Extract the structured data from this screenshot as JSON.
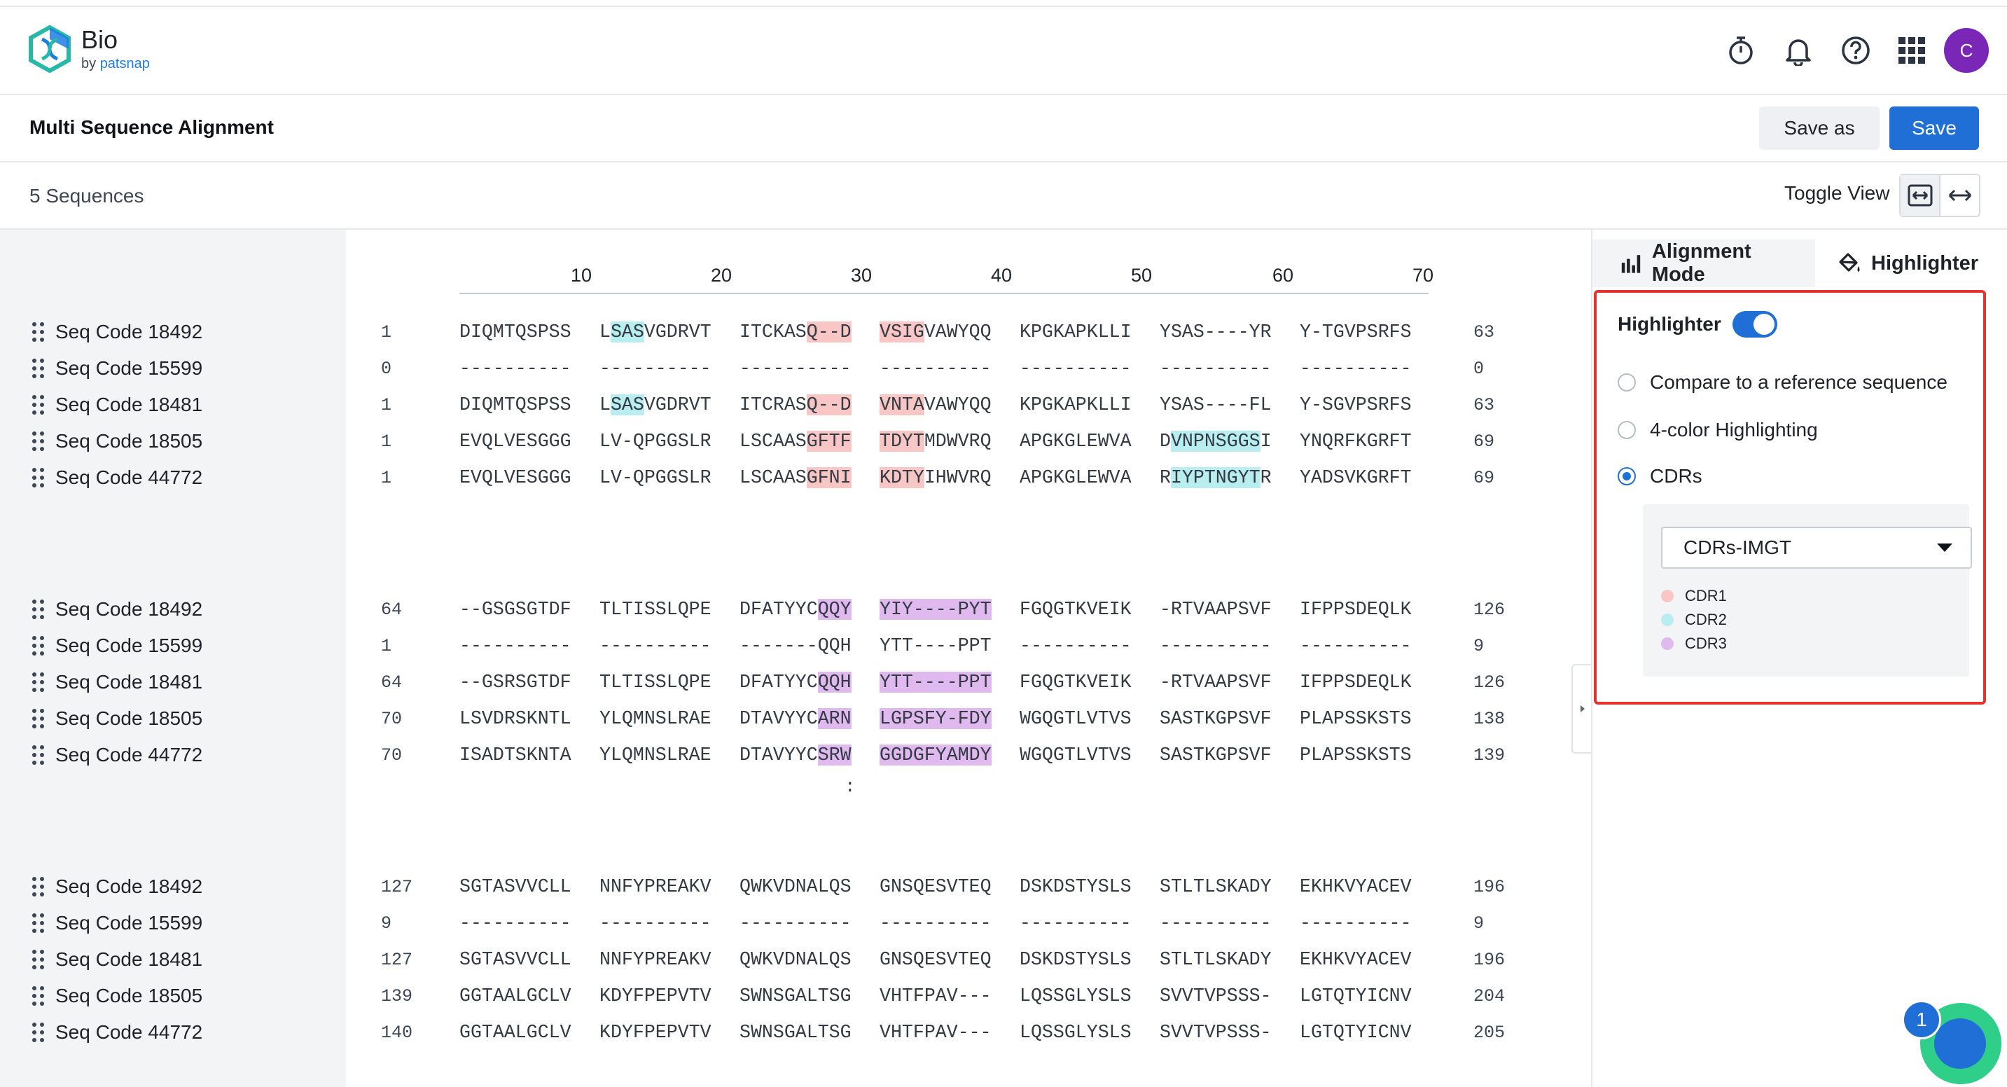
{
  "app": {
    "brand": "Bio",
    "by": "by",
    "by_brand": "patsnap",
    "avatar_letter": "C"
  },
  "page": {
    "title": "Multi Sequence Alignment",
    "save_as": "Save as",
    "save": "Save"
  },
  "toolbar": {
    "sequence_count": "5 Sequences",
    "toggle_view": "Toggle View"
  },
  "ruler": [
    "10",
    "20",
    "30",
    "40",
    "50",
    "60",
    "70"
  ],
  "colors": {
    "cdr1": "#f9c6c6",
    "cdr2": "#b9eef0",
    "cdr3": "#e0b9ef",
    "accent": "#1f6fd6",
    "highlight_border": "#e5322e"
  },
  "blocks": [
    {
      "rows": [
        {
          "name": "Seq Code 18492",
          "start": "1",
          "end": "63",
          "chunks": [
            [
              [
                "DIQMTQSPSS",
                ""
              ]
            ],
            [
              [
                "L",
                ""
              ],
              [
                "SAS",
                "h2"
              ],
              [
                "VGDRVT",
                ""
              ]
            ],
            [
              [
                "ITCKAS",
                ""
              ],
              [
                "Q--D",
                "h1"
              ]
            ],
            [
              [
                "VSIG",
                "h1"
              ],
              [
                "VAWYQQ",
                ""
              ]
            ],
            [
              [
                "KPGKAPKLLI",
                ""
              ]
            ],
            [
              [
                "YSAS----YR",
                ""
              ]
            ],
            [
              [
                "Y-TGVPSRFS",
                ""
              ]
            ]
          ]
        },
        {
          "name": "Seq Code 15599",
          "start": "0",
          "end": "0",
          "chunks": [
            [
              [
                "----------",
                ""
              ]
            ],
            [
              [
                "----------",
                ""
              ]
            ],
            [
              [
                "----------",
                ""
              ]
            ],
            [
              [
                "----------",
                ""
              ]
            ],
            [
              [
                "----------",
                ""
              ]
            ],
            [
              [
                "----------",
                ""
              ]
            ],
            [
              [
                "----------",
                ""
              ]
            ]
          ]
        },
        {
          "name": "Seq Code 18481",
          "start": "1",
          "end": "63",
          "chunks": [
            [
              [
                "DIQMTQSPSS",
                ""
              ]
            ],
            [
              [
                "L",
                ""
              ],
              [
                "SAS",
                "h2"
              ],
              [
                "VGDRVT",
                ""
              ]
            ],
            [
              [
                "ITCRAS",
                ""
              ],
              [
                "Q--D",
                "h1"
              ]
            ],
            [
              [
                "VNTA",
                "h1"
              ],
              [
                "VAWYQQ",
                ""
              ]
            ],
            [
              [
                "KPGKAPKLLI",
                ""
              ]
            ],
            [
              [
                "YSAS----FL",
                ""
              ]
            ],
            [
              [
                "Y-SGVPSRFS",
                ""
              ]
            ]
          ]
        },
        {
          "name": "Seq Code 18505",
          "start": "1",
          "end": "69",
          "chunks": [
            [
              [
                "EVQLVESGGG",
                ""
              ]
            ],
            [
              [
                "LV-QPGGSLR",
                ""
              ]
            ],
            [
              [
                "LSCAAS",
                ""
              ],
              [
                "GFTF",
                "h1"
              ]
            ],
            [
              [
                "TDYT",
                "h1"
              ],
              [
                "MDWVRQ",
                ""
              ]
            ],
            [
              [
                "APGKGLEWVA",
                ""
              ]
            ],
            [
              [
                "D",
                ""
              ],
              [
                "VNPNSGGS",
                "h2"
              ],
              [
                "I",
                ""
              ]
            ],
            [
              [
                "YNQRFKGRFT",
                ""
              ]
            ]
          ]
        },
        {
          "name": "Seq Code 44772",
          "start": "1",
          "end": "69",
          "chunks": [
            [
              [
                "EVQLVESGGG",
                ""
              ]
            ],
            [
              [
                "LV-QPGGSLR",
                ""
              ]
            ],
            [
              [
                "LSCAAS",
                ""
              ],
              [
                "GFNI",
                "h1"
              ]
            ],
            [
              [
                "KDTY",
                "h1"
              ],
              [
                "IHWVRQ",
                ""
              ]
            ],
            [
              [
                "APGKGLEWVA",
                ""
              ]
            ],
            [
              [
                "R",
                ""
              ],
              [
                "IYPTNGYT",
                "h2"
              ],
              [
                "R",
                ""
              ]
            ],
            [
              [
                "YADSVKGRFT",
                ""
              ]
            ]
          ]
        }
      ]
    },
    {
      "rows": [
        {
          "name": "Seq Code 18492",
          "start": "64",
          "end": "126",
          "chunks": [
            [
              [
                "--GSGSGTDF",
                ""
              ]
            ],
            [
              [
                "TLTISSLQPE",
                ""
              ]
            ],
            [
              [
                "DFATYYC",
                ""
              ],
              [
                "QQY",
                "h3"
              ]
            ],
            [
              [
                "YIY----PYT",
                "h3"
              ]
            ],
            [
              [
                "FGQGTKVEIK",
                ""
              ]
            ],
            [
              [
                "-RTVAAPSVF",
                ""
              ]
            ],
            [
              [
                "IFPPSDEQLK",
                ""
              ]
            ]
          ]
        },
        {
          "name": "Seq Code 15599",
          "start": "1",
          "end": "9",
          "chunks": [
            [
              [
                "----------",
                ""
              ]
            ],
            [
              [
                "----------",
                ""
              ]
            ],
            [
              [
                "-------QQH",
                ""
              ]
            ],
            [
              [
                "YTT----PPT",
                ""
              ]
            ],
            [
              [
                "----------",
                ""
              ]
            ],
            [
              [
                "----------",
                ""
              ]
            ],
            [
              [
                "----------",
                ""
              ]
            ]
          ]
        },
        {
          "name": "Seq Code 18481",
          "start": "64",
          "end": "126",
          "chunks": [
            [
              [
                "--GSRSGTDF",
                ""
              ]
            ],
            [
              [
                "TLTISSLQPE",
                ""
              ]
            ],
            [
              [
                "DFATYYC",
                ""
              ],
              [
                "QQH",
                "h3"
              ]
            ],
            [
              [
                "YTT----PPT",
                "h3"
              ]
            ],
            [
              [
                "FGQGTKVEIK",
                ""
              ]
            ],
            [
              [
                "-RTVAAPSVF",
                ""
              ]
            ],
            [
              [
                "IFPPSDEQLK",
                ""
              ]
            ]
          ]
        },
        {
          "name": "Seq Code 18505",
          "start": "70",
          "end": "138",
          "chunks": [
            [
              [
                "LSVDRSKNTL",
                ""
              ]
            ],
            [
              [
                "YLQMNSLRAE",
                ""
              ]
            ],
            [
              [
                "DTAVYYC",
                ""
              ],
              [
                "ARN",
                "h3"
              ]
            ],
            [
              [
                "LGPSFY-FDY",
                "h3"
              ]
            ],
            [
              [
                "WGQGTLVTVS",
                ""
              ]
            ],
            [
              [
                "SASTKGPSVF",
                ""
              ]
            ],
            [
              [
                "PLAPSSKSTS",
                ""
              ]
            ]
          ]
        },
        {
          "name": "Seq Code 44772",
          "start": "70",
          "end": "139",
          "chunks": [
            [
              [
                "ISADTSKNTA",
                ""
              ]
            ],
            [
              [
                "YLQMNSLRAE",
                ""
              ]
            ],
            [
              [
                "DTAVYYC",
                ""
              ],
              [
                "SRW",
                "h3"
              ]
            ],
            [
              [
                "GGDGFYAMDY",
                "h3"
              ]
            ],
            [
              [
                "WGQGTLVTVS",
                ""
              ]
            ],
            [
              [
                "SASTKGPSVF",
                ""
              ]
            ],
            [
              [
                "PLAPSSKSTS",
                ""
              ]
            ]
          ]
        }
      ]
    },
    {
      "rows": [
        {
          "name": "Seq Code 18492",
          "start": "127",
          "end": "196",
          "chunks": [
            [
              [
                "SGTASVVCLL",
                ""
              ]
            ],
            [
              [
                "NNFYPREAKV",
                ""
              ]
            ],
            [
              [
                "QWKVDNALQS",
                ""
              ]
            ],
            [
              [
                "GNSQESVTEQ",
                ""
              ]
            ],
            [
              [
                "DSKDSTYSLS",
                ""
              ]
            ],
            [
              [
                "STLTLSKADY",
                ""
              ]
            ],
            [
              [
                "EKHKVYACEV",
                ""
              ]
            ]
          ]
        },
        {
          "name": "Seq Code 15599",
          "start": "9",
          "end": "9",
          "chunks": [
            [
              [
                "----------",
                ""
              ]
            ],
            [
              [
                "----------",
                ""
              ]
            ],
            [
              [
                "----------",
                ""
              ]
            ],
            [
              [
                "----------",
                ""
              ]
            ],
            [
              [
                "----------",
                ""
              ]
            ],
            [
              [
                "----------",
                ""
              ]
            ],
            [
              [
                "----------",
                ""
              ]
            ]
          ]
        },
        {
          "name": "Seq Code 18481",
          "start": "127",
          "end": "196",
          "chunks": [
            [
              [
                "SGTASVVCLL",
                ""
              ]
            ],
            [
              [
                "NNFYPREAKV",
                ""
              ]
            ],
            [
              [
                "QWKVDNALQS",
                ""
              ]
            ],
            [
              [
                "GNSQESVTEQ",
                ""
              ]
            ],
            [
              [
                "DSKDSTYSLS",
                ""
              ]
            ],
            [
              [
                "STLTLSKADY",
                ""
              ]
            ],
            [
              [
                "EKHKVYACEV",
                ""
              ]
            ]
          ]
        },
        {
          "name": "Seq Code 18505",
          "start": "139",
          "end": "204",
          "chunks": [
            [
              [
                "GGTAALGCLV",
                ""
              ]
            ],
            [
              [
                "KDYFPEPVTV",
                ""
              ]
            ],
            [
              [
                "SWNSGALTSG",
                ""
              ]
            ],
            [
              [
                "VHTFPAV---",
                ""
              ]
            ],
            [
              [
                "LQSSGLYSLS",
                ""
              ]
            ],
            [
              [
                "SVVTVPSSS-",
                ""
              ]
            ],
            [
              [
                "LGTQTYICNV",
                ""
              ]
            ]
          ]
        },
        {
          "name": "Seq Code 44772",
          "start": "140",
          "end": "205",
          "chunks": [
            [
              [
                "GGTAALGCLV",
                ""
              ]
            ],
            [
              [
                "KDYFPEPVTV",
                ""
              ]
            ],
            [
              [
                "SWNSGALTSG",
                ""
              ]
            ],
            [
              [
                "VHTFPAV---",
                ""
              ]
            ],
            [
              [
                "LQSSGLYSLS",
                ""
              ]
            ],
            [
              [
                "SVVTVPSSS-",
                ""
              ]
            ],
            [
              [
                "LGTQTYICNV",
                ""
              ]
            ]
          ]
        }
      ]
    }
  ],
  "consensus_mark": ":",
  "panel": {
    "tabs": [
      {
        "label": "Alignment Mode",
        "icon": "bar-chart-icon",
        "active": false
      },
      {
        "label": "Highlighter",
        "icon": "paint-bucket-icon",
        "active": true
      }
    ],
    "highlighter_label": "Highlighter",
    "highlighter_on": true,
    "options": [
      {
        "label": "Compare to a reference sequence",
        "checked": false
      },
      {
        "label": "4-color Highlighting",
        "checked": false
      },
      {
        "label": "CDRs",
        "checked": true
      }
    ],
    "cdr_scheme": "CDRs-IMGT",
    "legend": [
      {
        "label": "CDR1",
        "color": "#f9c6c6"
      },
      {
        "label": "CDR2",
        "color": "#b9eef0"
      },
      {
        "label": "CDR3",
        "color": "#e0b9ef"
      }
    ]
  },
  "assistant": {
    "badge_count": "1"
  }
}
